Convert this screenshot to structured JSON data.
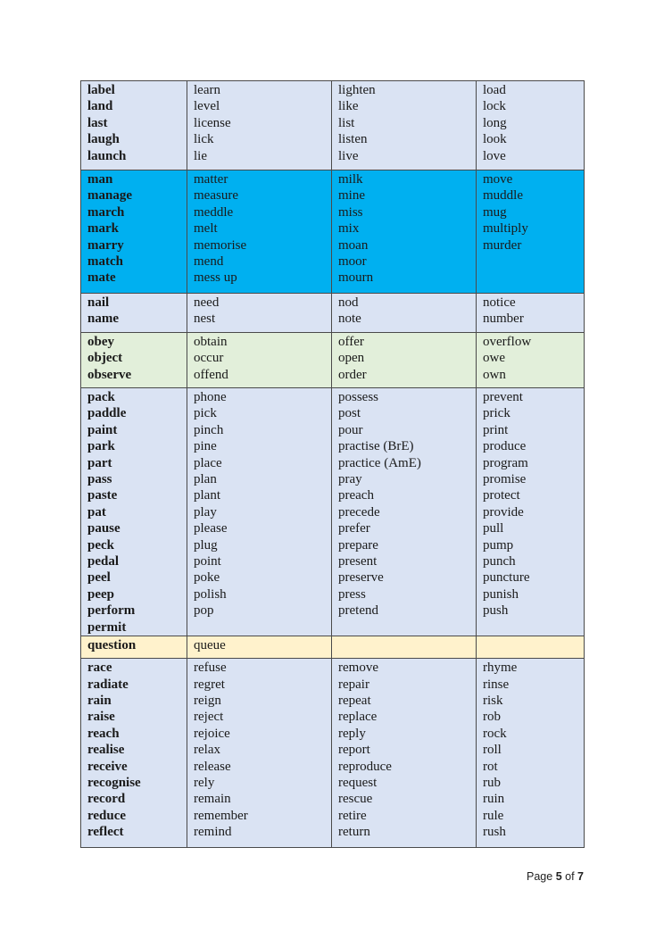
{
  "colors": {
    "light_blue": "#dae3f3",
    "cyan": "#00b0f0",
    "light_green": "#e2efda",
    "light_yellow": "#fff2cc"
  },
  "rows": [
    {
      "bg": "#dae3f3",
      "cols": [
        [
          "label",
          "land",
          "last",
          "laugh",
          "launch"
        ],
        [
          "learn",
          "level",
          "license",
          "lick",
          "lie"
        ],
        [
          "lighten",
          "like",
          "list",
          "listen",
          "live"
        ],
        [
          "load",
          "lock",
          "long",
          "look",
          "love"
        ]
      ]
    },
    {
      "bg": "#00b0f0",
      "cols": [
        [
          "man",
          "manage",
          "march",
          "mark",
          "marry",
          "match",
          "mate"
        ],
        [
          "matter",
          "measure",
          "meddle",
          "melt",
          "memorise",
          "mend",
          "mess up"
        ],
        [
          "milk",
          "mine",
          "miss",
          "mix",
          "moan",
          "moor",
          "mourn"
        ],
        [
          "move",
          "muddle",
          "mug",
          "multiply",
          "murder"
        ]
      ]
    },
    {
      "bg": "#dae3f3",
      "cols": [
        [
          "nail",
          "name"
        ],
        [
          "need",
          "nest"
        ],
        [
          "nod",
          "note"
        ],
        [
          "notice",
          "number"
        ]
      ]
    },
    {
      "bg": "#e2efda",
      "cols": [
        [
          "obey",
          "object",
          "observe"
        ],
        [
          "obtain",
          "occur",
          "offend"
        ],
        [
          "offer",
          "open",
          "order"
        ],
        [
          "overflow",
          "owe",
          "own"
        ]
      ]
    },
    {
      "bg": "#dae3f3",
      "cols": [
        [
          "pack",
          "paddle",
          "paint",
          "park",
          "part",
          "pass",
          "paste",
          "pat",
          "pause",
          "peck",
          "pedal",
          "peel",
          "peep",
          "perform",
          "permit"
        ],
        [
          "phone",
          "pick",
          "pinch",
          "pine",
          "place",
          "plan",
          "plant",
          "play",
          "please",
          "plug",
          "point",
          "poke",
          "polish",
          "pop"
        ],
        [
          "possess",
          "post",
          "pour",
          "practise (BrE)",
          "practice (AmE)",
          "pray",
          "preach",
          "precede",
          "prefer",
          "prepare",
          "present",
          "preserve",
          "press",
          "pretend"
        ],
        [
          "prevent",
          "prick",
          "print",
          "produce",
          "program",
          "promise",
          "protect",
          "provide",
          "pull",
          "pump",
          "punch",
          "puncture",
          "punish",
          "push"
        ]
      ]
    },
    {
      "bg": "#fff2cc",
      "cols": [
        [
          "question"
        ],
        [
          "queue"
        ],
        [],
        []
      ]
    },
    {
      "bg": "#dae3f3",
      "cols": [
        [
          "race",
          "radiate",
          "rain",
          "raise",
          "reach",
          "realise",
          "receive",
          "recognise",
          "record",
          "reduce",
          "reflect"
        ],
        [
          "refuse",
          "regret",
          "reign",
          "reject",
          "rejoice",
          "relax",
          "release",
          "rely",
          "remain",
          "remember",
          "remind"
        ],
        [
          "remove",
          "repair",
          "repeat",
          "replace",
          "reply",
          "report",
          "reproduce",
          "request",
          "rescue",
          "retire",
          "return"
        ],
        [
          "rhyme",
          "rinse",
          "risk",
          "rob",
          "rock",
          "roll",
          "rot",
          "rub",
          "ruin",
          "rule",
          "rush"
        ]
      ]
    }
  ],
  "footer": {
    "prefix": "Page",
    "page": "5",
    "of": "of",
    "total": "7"
  }
}
